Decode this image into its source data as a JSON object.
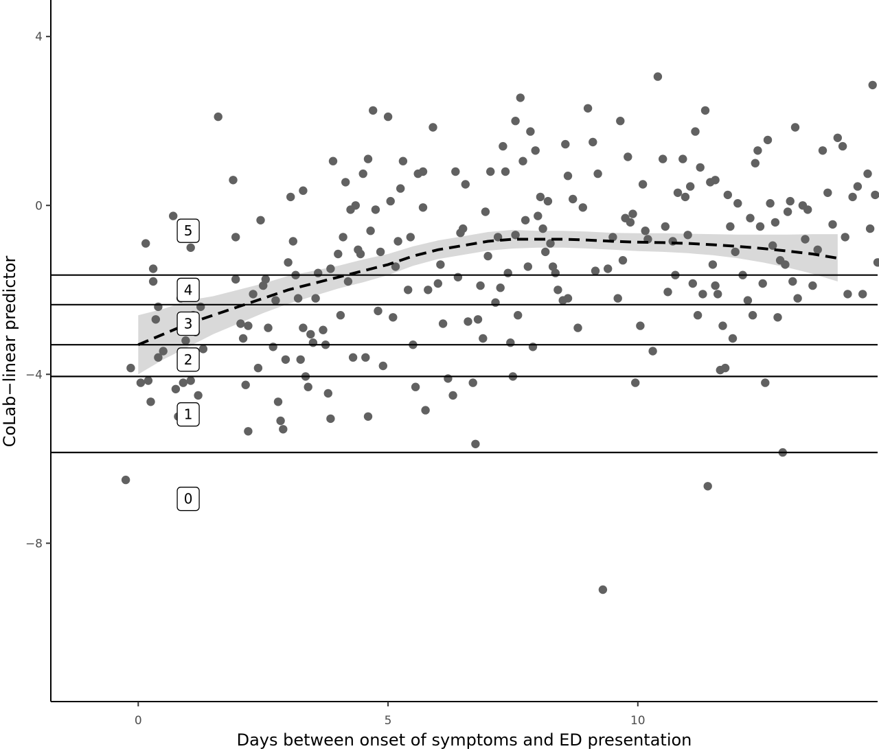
{
  "chart_data": {
    "type": "scatter",
    "title": "",
    "xlabel": "Days between onset of symptoms and ED presentation",
    "ylabel": "CoLab−linear predictor",
    "xlim": [
      -1.75,
      14.8
    ],
    "ylim": [
      -11.75,
      4.8
    ],
    "x_ticks": [
      0,
      5,
      10
    ],
    "x_tick_labels": [
      "0",
      "5",
      "10"
    ],
    "y_ticks": [
      4,
      0,
      -4,
      -8
    ],
    "y_tick_labels": [
      "4",
      "0",
      "−4",
      "−8"
    ],
    "grid": false,
    "colors": {
      "points": "#616161",
      "smooth_line": "#000000",
      "confidence_band": "#d9d9d9",
      "threshold_lines": "#000000",
      "axis_text": "#4d4d4d"
    },
    "threshold_lines_y": [
      -1.65,
      -2.35,
      -3.3,
      -4.05,
      -5.85
    ],
    "class_labels": [
      {
        "text": "5",
        "x": 1.0,
        "y": -0.6
      },
      {
        "text": "4",
        "x": 1.0,
        "y": -2.0
      },
      {
        "text": "3",
        "x": 1.0,
        "y": -2.8
      },
      {
        "text": "2",
        "x": 1.0,
        "y": -3.65
      },
      {
        "text": "1",
        "x": 1.0,
        "y": -4.95
      },
      {
        "text": "0",
        "x": 1.0,
        "y": -6.95
      }
    ],
    "smooth_series": {
      "x": [
        0,
        0.5,
        1,
        1.5,
        2,
        2.5,
        3,
        3.5,
        4,
        4.5,
        5,
        5.5,
        6,
        6.5,
        7,
        7.5,
        8,
        8.5,
        9,
        9.5,
        10,
        10.5,
        11,
        11.5,
        12,
        12.5,
        13,
        13.5,
        14
      ],
      "y": [
        -3.3,
        -3.05,
        -2.8,
        -2.6,
        -2.4,
        -2.2,
        -2.0,
        -1.85,
        -1.7,
        -1.55,
        -1.4,
        -1.2,
        -1.05,
        -0.95,
        -0.85,
        -0.8,
        -0.8,
        -0.8,
        -0.82,
        -0.85,
        -0.87,
        -0.88,
        -0.9,
        -0.93,
        -0.97,
        -1.02,
        -1.08,
        -1.15,
        -1.25
      ],
      "lower": [
        -4.0,
        -3.65,
        -3.35,
        -3.05,
        -2.8,
        -2.55,
        -2.33,
        -2.15,
        -1.97,
        -1.82,
        -1.65,
        -1.43,
        -1.27,
        -1.17,
        -1.07,
        -1.02,
        -1.0,
        -1.0,
        -1.02,
        -1.05,
        -1.08,
        -1.1,
        -1.13,
        -1.18,
        -1.25,
        -1.35,
        -1.47,
        -1.62,
        -1.8
      ],
      "upper": [
        -2.6,
        -2.45,
        -2.25,
        -2.15,
        -2.0,
        -1.85,
        -1.67,
        -1.55,
        -1.43,
        -1.28,
        -1.15,
        -0.97,
        -0.83,
        -0.73,
        -0.63,
        -0.58,
        -0.6,
        -0.6,
        -0.62,
        -0.65,
        -0.66,
        -0.66,
        -0.67,
        -0.68,
        -0.69,
        -0.69,
        -0.69,
        -0.68,
        -0.68
      ]
    },
    "points": [
      [
        -0.25,
        -6.5
      ],
      [
        0.05,
        -4.2
      ],
      [
        0.15,
        -0.9
      ],
      [
        0.2,
        -4.15
      ],
      [
        0.25,
        -4.65
      ],
      [
        0.3,
        -1.8
      ],
      [
        0.35,
        -2.7
      ],
      [
        0.3,
        -1.5
      ],
      [
        0.4,
        -3.6
      ],
      [
        -0.15,
        -3.85
      ],
      [
        0.4,
        -2.4
      ],
      [
        0.5,
        -3.45
      ],
      [
        0.7,
        -0.25
      ],
      [
        0.75,
        -4.35
      ],
      [
        0.8,
        -5.0
      ],
      [
        0.85,
        -2.2
      ],
      [
        0.9,
        -4.2
      ],
      [
        0.95,
        -3.2
      ],
      [
        1.0,
        -3.7
      ],
      [
        1.05,
        -4.15
      ],
      [
        1.05,
        -1.0
      ],
      [
        1.1,
        -2.6
      ],
      [
        1.15,
        -3.0
      ],
      [
        1.2,
        -4.5
      ],
      [
        1.25,
        -2.4
      ],
      [
        1.3,
        -3.4
      ],
      [
        1.6,
        2.1
      ],
      [
        1.9,
        0.6
      ],
      [
        1.95,
        -0.75
      ],
      [
        1.95,
        -1.75
      ],
      [
        2.05,
        -2.8
      ],
      [
        2.1,
        -3.15
      ],
      [
        2.15,
        -4.25
      ],
      [
        2.2,
        -5.35
      ],
      [
        2.2,
        -2.85
      ],
      [
        2.3,
        -2.1
      ],
      [
        2.4,
        -3.85
      ],
      [
        2.45,
        -0.35
      ],
      [
        2.5,
        -1.9
      ],
      [
        2.55,
        -1.75
      ],
      [
        2.6,
        -2.9
      ],
      [
        2.7,
        -3.35
      ],
      [
        2.75,
        -2.25
      ],
      [
        2.8,
        -4.65
      ],
      [
        2.85,
        -5.1
      ],
      [
        2.9,
        -5.3
      ],
      [
        2.95,
        -3.65
      ],
      [
        3.0,
        -1.35
      ],
      [
        3.05,
        0.2
      ],
      [
        3.1,
        -0.85
      ],
      [
        3.15,
        -1.65
      ],
      [
        3.2,
        -2.2
      ],
      [
        3.25,
        -3.65
      ],
      [
        3.3,
        -2.9
      ],
      [
        3.35,
        -4.05
      ],
      [
        3.4,
        -4.3
      ],
      [
        3.45,
        -3.05
      ],
      [
        3.5,
        -3.25
      ],
      [
        3.55,
        -2.2
      ],
      [
        3.6,
        -1.6
      ],
      [
        3.7,
        -2.95
      ],
      [
        3.75,
        -3.3
      ],
      [
        3.8,
        -4.45
      ],
      [
        3.85,
        -5.05
      ],
      [
        3.9,
        1.05
      ],
      [
        4.0,
        -1.15
      ],
      [
        4.05,
        -2.6
      ],
      [
        4.1,
        -0.75
      ],
      [
        4.15,
        0.55
      ],
      [
        4.2,
        -1.8
      ],
      [
        4.3,
        -3.6
      ],
      [
        4.35,
        0.0
      ],
      [
        4.4,
        -1.05
      ],
      [
        4.45,
        -1.15
      ],
      [
        4.5,
        0.75
      ],
      [
        4.55,
        -3.6
      ],
      [
        4.6,
        -5.0
      ],
      [
        4.65,
        -0.6
      ],
      [
        4.7,
        2.25
      ],
      [
        4.75,
        -0.1
      ],
      [
        4.8,
        -2.5
      ],
      [
        4.85,
        -1.1
      ],
      [
        4.9,
        -3.8
      ],
      [
        5.0,
        2.1
      ],
      [
        5.05,
        0.1
      ],
      [
        5.1,
        -2.65
      ],
      [
        5.15,
        -1.45
      ],
      [
        5.2,
        -0.85
      ],
      [
        5.3,
        1.05
      ],
      [
        5.4,
        -2.0
      ],
      [
        5.45,
        -0.75
      ],
      [
        5.5,
        -3.3
      ],
      [
        5.55,
        -4.3
      ],
      [
        5.6,
        0.75
      ],
      [
        5.7,
        -0.05
      ],
      [
        5.75,
        -4.85
      ],
      [
        5.8,
        -2.0
      ],
      [
        5.9,
        1.85
      ],
      [
        6.0,
        -1.85
      ],
      [
        6.1,
        -2.8
      ],
      [
        6.2,
        -4.1
      ],
      [
        6.3,
        -4.5
      ],
      [
        6.35,
        0.8
      ],
      [
        6.4,
        -1.7
      ],
      [
        6.45,
        -0.65
      ],
      [
        6.55,
        0.5
      ],
      [
        6.6,
        -2.75
      ],
      [
        6.7,
        -4.2
      ],
      [
        6.75,
        -5.65
      ],
      [
        6.8,
        -2.7
      ],
      [
        6.85,
        -1.9
      ],
      [
        6.9,
        -3.15
      ],
      [
        6.95,
        -0.15
      ],
      [
        7.0,
        -1.2
      ],
      [
        7.05,
        0.8
      ],
      [
        7.15,
        -2.3
      ],
      [
        7.2,
        -0.75
      ],
      [
        7.3,
        1.4
      ],
      [
        7.35,
        0.8
      ],
      [
        7.4,
        -1.6
      ],
      [
        7.45,
        -3.25
      ],
      [
        7.5,
        -4.05
      ],
      [
        7.55,
        2.0
      ],
      [
        7.6,
        -2.6
      ],
      [
        7.65,
        2.55
      ],
      [
        7.7,
        1.05
      ],
      [
        7.75,
        -0.35
      ],
      [
        7.8,
        -1.45
      ],
      [
        7.85,
        1.75
      ],
      [
        7.9,
        -3.35
      ],
      [
        7.95,
        1.3
      ],
      [
        8.0,
        -0.25
      ],
      [
        8.05,
        0.2
      ],
      [
        8.1,
        -0.55
      ],
      [
        8.15,
        -1.1
      ],
      [
        8.2,
        0.1
      ],
      [
        8.25,
        -0.9
      ],
      [
        8.3,
        -1.45
      ],
      [
        8.4,
        -2.0
      ],
      [
        8.5,
        -2.25
      ],
      [
        8.55,
        1.45
      ],
      [
        8.6,
        0.7
      ],
      [
        8.7,
        0.15
      ],
      [
        8.8,
        -2.9
      ],
      [
        8.9,
        -0.05
      ],
      [
        9.0,
        2.3
      ],
      [
        9.1,
        1.5
      ],
      [
        9.2,
        0.75
      ],
      [
        9.3,
        -9.1
      ],
      [
        9.4,
        -1.5
      ],
      [
        9.5,
        -0.75
      ],
      [
        9.6,
        -2.2
      ],
      [
        9.65,
        2.0
      ],
      [
        9.7,
        -1.3
      ],
      [
        9.8,
        1.15
      ],
      [
        9.85,
        -0.4
      ],
      [
        9.9,
        -0.2
      ],
      [
        9.95,
        -4.2
      ],
      [
        10.05,
        -2.85
      ],
      [
        10.1,
        0.5
      ],
      [
        10.2,
        -0.8
      ],
      [
        10.3,
        -3.45
      ],
      [
        10.4,
        3.05
      ],
      [
        10.5,
        1.1
      ],
      [
        10.55,
        -0.5
      ],
      [
        10.6,
        -2.05
      ],
      [
        10.7,
        -0.85
      ],
      [
        10.75,
        -1.65
      ],
      [
        10.8,
        0.3
      ],
      [
        10.9,
        1.1
      ],
      [
        10.95,
        0.2
      ],
      [
        11.0,
        -0.7
      ],
      [
        11.05,
        0.45
      ],
      [
        11.1,
        -1.85
      ],
      [
        11.15,
        1.75
      ],
      [
        11.2,
        -2.6
      ],
      [
        11.25,
        0.9
      ],
      [
        11.3,
        -2.1
      ],
      [
        11.35,
        2.25
      ],
      [
        11.4,
        -6.65
      ],
      [
        11.45,
        0.55
      ],
      [
        11.5,
        -1.4
      ],
      [
        11.55,
        -1.9
      ],
      [
        11.6,
        -2.1
      ],
      [
        11.65,
        -3.9
      ],
      [
        11.7,
        -2.85
      ],
      [
        11.75,
        -3.85
      ],
      [
        11.8,
        0.25
      ],
      [
        11.85,
        -0.5
      ],
      [
        11.9,
        -3.15
      ],
      [
        11.95,
        -1.1
      ],
      [
        12.0,
        0.05
      ],
      [
        12.1,
        -1.65
      ],
      [
        12.2,
        -2.25
      ],
      [
        12.25,
        -0.3
      ],
      [
        12.3,
        -2.6
      ],
      [
        12.35,
        1.0
      ],
      [
        12.4,
        1.3
      ],
      [
        12.45,
        -0.5
      ],
      [
        12.5,
        -1.85
      ],
      [
        12.55,
        -4.2
      ],
      [
        12.6,
        1.55
      ],
      [
        12.7,
        -0.95
      ],
      [
        12.75,
        -0.4
      ],
      [
        12.8,
        -2.65
      ],
      [
        12.85,
        -1.3
      ],
      [
        12.9,
        -5.85
      ],
      [
        12.95,
        -1.4
      ],
      [
        13.0,
        -0.15
      ],
      [
        13.05,
        0.1
      ],
      [
        13.1,
        -1.8
      ],
      [
        13.15,
        1.85
      ],
      [
        13.2,
        -2.2
      ],
      [
        13.3,
        0.0
      ],
      [
        13.4,
        -0.1
      ],
      [
        13.5,
        -1.9
      ],
      [
        13.6,
        -1.05
      ],
      [
        13.7,
        1.3
      ],
      [
        13.8,
        0.3
      ],
      [
        13.9,
        -0.45
      ],
      [
        14.0,
        1.6
      ],
      [
        14.1,
        1.4
      ],
      [
        14.15,
        -0.75
      ],
      [
        14.2,
        -2.1
      ],
      [
        14.3,
        0.2
      ],
      [
        14.4,
        0.45
      ],
      [
        14.5,
        -2.1
      ],
      [
        14.6,
        0.75
      ],
      [
        14.65,
        -0.55
      ],
      [
        14.7,
        2.85
      ],
      [
        14.75,
        0.25
      ],
      [
        14.8,
        -1.35
      ],
      [
        3.3,
        0.35
      ],
      [
        4.6,
        1.1
      ],
      [
        5.7,
        0.8
      ],
      [
        6.05,
        -1.4
      ],
      [
        6.5,
        -0.55
      ],
      [
        7.25,
        -1.95
      ],
      [
        7.55,
        -0.7
      ],
      [
        8.6,
        -2.2
      ],
      [
        9.15,
        -1.55
      ],
      [
        9.75,
        -0.3
      ],
      [
        10.15,
        -0.6
      ],
      [
        11.55,
        0.6
      ],
      [
        12.65,
        0.05
      ],
      [
        13.35,
        -0.8
      ],
      [
        3.85,
        -1.5
      ],
      [
        4.25,
        -0.1
      ],
      [
        5.25,
        0.4
      ],
      [
        8.35,
        -1.6
      ]
    ]
  }
}
